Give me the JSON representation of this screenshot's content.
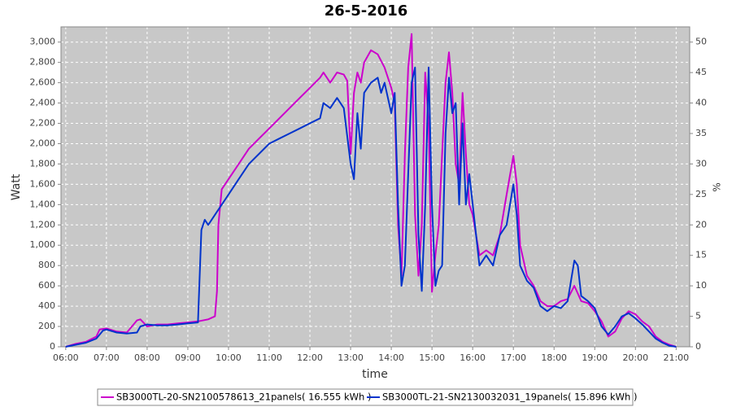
{
  "chart_data": {
    "type": "line",
    "title": "26-5-2016",
    "x_label": "time",
    "y_label": "Watt",
    "y2_label": "%",
    "xlim": [
      353,
      1280
    ],
    "xticks": [
      {
        "value": 360,
        "label": "06:00"
      },
      {
        "value": 420,
        "label": "07:00"
      },
      {
        "value": 480,
        "label": "08:00"
      },
      {
        "value": 540,
        "label": "09:00"
      },
      {
        "value": 600,
        "label": "10:00"
      },
      {
        "value": 660,
        "label": "11:00"
      },
      {
        "value": 720,
        "label": "12:00"
      },
      {
        "value": 780,
        "label": "13:00"
      },
      {
        "value": 840,
        "label": "14:00"
      },
      {
        "value": 900,
        "label": "15:00"
      },
      {
        "value": 960,
        "label": "16:00"
      },
      {
        "value": 1020,
        "label": "17:00"
      },
      {
        "value": 1080,
        "label": "18:00"
      },
      {
        "value": 1140,
        "label": "19:00"
      },
      {
        "value": 1200,
        "label": "20:00"
      },
      {
        "value": 1260,
        "label": "21:00"
      }
    ],
    "ylim": [
      0,
      3150
    ],
    "yticks": [
      0,
      200,
      400,
      600,
      800,
      {
        "value": 1000,
        "label": "1,000"
      },
      {
        "value": 1200,
        "label": "1,200"
      },
      {
        "value": 1400,
        "label": "1,400"
      },
      {
        "value": 1600,
        "label": "1,600"
      },
      {
        "value": 1800,
        "label": "1,800"
      },
      {
        "value": 2000,
        "label": "2,000"
      },
      {
        "value": 2200,
        "label": "2,200"
      },
      {
        "value": 2400,
        "label": "2,400"
      },
      {
        "value": 2600,
        "label": "2,600"
      },
      {
        "value": 2800,
        "label": "2,800"
      },
      {
        "value": 3000,
        "label": "3,000"
      }
    ],
    "y2lim": [
      0,
      52.5
    ],
    "y2ticks": [
      0,
      5,
      10,
      15,
      20,
      25,
      30,
      35,
      40,
      45,
      50
    ],
    "grid": true,
    "legend": "bottom",
    "series": [
      {
        "name": "SB3000TL-20-SN2100578613_21panels( 16.555 kWh )",
        "color": "#cc00cc",
        "x": [
          360,
          375,
          390,
          405,
          410,
          420,
          435,
          450,
          465,
          470,
          480,
          495,
          510,
          525,
          540,
          555,
          570,
          580,
          583,
          585,
          590,
          600,
          615,
          630,
          645,
          660,
          675,
          690,
          705,
          720,
          735,
          740,
          750,
          760,
          770,
          775,
          780,
          785,
          790,
          795,
          800,
          810,
          820,
          830,
          840,
          845,
          850,
          855,
          860,
          865,
          870,
          875,
          880,
          885,
          890,
          895,
          900,
          905,
          910,
          915,
          920,
          925,
          930,
          935,
          940,
          945,
          950,
          955,
          960,
          970,
          980,
          990,
          1000,
          1010,
          1020,
          1025,
          1030,
          1040,
          1050,
          1060,
          1070,
          1080,
          1090,
          1100,
          1110,
          1120,
          1130,
          1140,
          1150,
          1160,
          1170,
          1180,
          1190,
          1200,
          1210,
          1220,
          1230,
          1240,
          1250,
          1260
        ],
        "values": [
          0,
          30,
          50,
          100,
          170,
          180,
          150,
          140,
          260,
          270,
          200,
          220,
          220,
          230,
          240,
          250,
          270,
          300,
          550,
          1200,
          1550,
          1650,
          1800,
          1950,
          2050,
          2150,
          2250,
          2350,
          2450,
          2550,
          2650,
          2700,
          2600,
          2700,
          2680,
          2620,
          1900,
          2500,
          2700,
          2600,
          2800,
          2920,
          2880,
          2750,
          2550,
          2400,
          1200,
          700,
          1900,
          2750,
          3080,
          1300,
          700,
          1200,
          2700,
          2200,
          540,
          900,
          1200,
          1900,
          2600,
          2900,
          2500,
          1800,
          1600,
          2500,
          1900,
          1400,
          1300,
          900,
          950,
          900,
          1100,
          1500,
          1880,
          1600,
          1000,
          700,
          600,
          450,
          400,
          400,
          450,
          470,
          600,
          450,
          430,
          350,
          250,
          100,
          150,
          280,
          350,
          320,
          250,
          200,
          100,
          50,
          20,
          0
        ]
      },
      {
        "name": "SB3000TL-21-SN2130032031_19panels( 15.896 kWh )",
        "color": "#0033cc",
        "x": [
          360,
          375,
          390,
          405,
          415,
          420,
          435,
          450,
          465,
          470,
          480,
          495,
          510,
          525,
          540,
          555,
          560,
          565,
          570,
          585,
          600,
          615,
          630,
          645,
          660,
          675,
          690,
          705,
          720,
          735,
          740,
          750,
          760,
          770,
          780,
          785,
          790,
          795,
          800,
          810,
          820,
          825,
          830,
          840,
          845,
          850,
          855,
          860,
          865,
          870,
          875,
          880,
          885,
          890,
          895,
          900,
          905,
          910,
          915,
          920,
          925,
          930,
          935,
          940,
          945,
          950,
          955,
          960,
          970,
          980,
          990,
          1000,
          1010,
          1020,
          1025,
          1030,
          1040,
          1050,
          1060,
          1070,
          1080,
          1090,
          1100,
          1110,
          1115,
          1120,
          1130,
          1140,
          1150,
          1160,
          1170,
          1180,
          1190,
          1200,
          1210,
          1220,
          1230,
          1240,
          1250,
          1260
        ],
        "values": [
          0,
          20,
          40,
          80,
          160,
          170,
          140,
          130,
          140,
          200,
          220,
          210,
          210,
          220,
          230,
          240,
          1150,
          1250,
          1200,
          1350,
          1500,
          1650,
          1800,
          1900,
          2000,
          2050,
          2100,
          2150,
          2200,
          2250,
          2400,
          2350,
          2450,
          2350,
          1800,
          1650,
          2300,
          1950,
          2500,
          2600,
          2650,
          2500,
          2600,
          2300,
          2500,
          1400,
          600,
          800,
          1700,
          2600,
          2750,
          1100,
          550,
          1400,
          2750,
          1400,
          600,
          750,
          800,
          2100,
          2650,
          2300,
          2400,
          1400,
          2200,
          1400,
          1700,
          1400,
          800,
          900,
          800,
          1100,
          1200,
          1600,
          1300,
          800,
          650,
          580,
          400,
          350,
          400,
          380,
          450,
          850,
          800,
          500,
          450,
          380,
          200,
          120,
          200,
          300,
          330,
          280,
          220,
          150,
          80,
          40,
          10,
          0
        ]
      }
    ]
  }
}
